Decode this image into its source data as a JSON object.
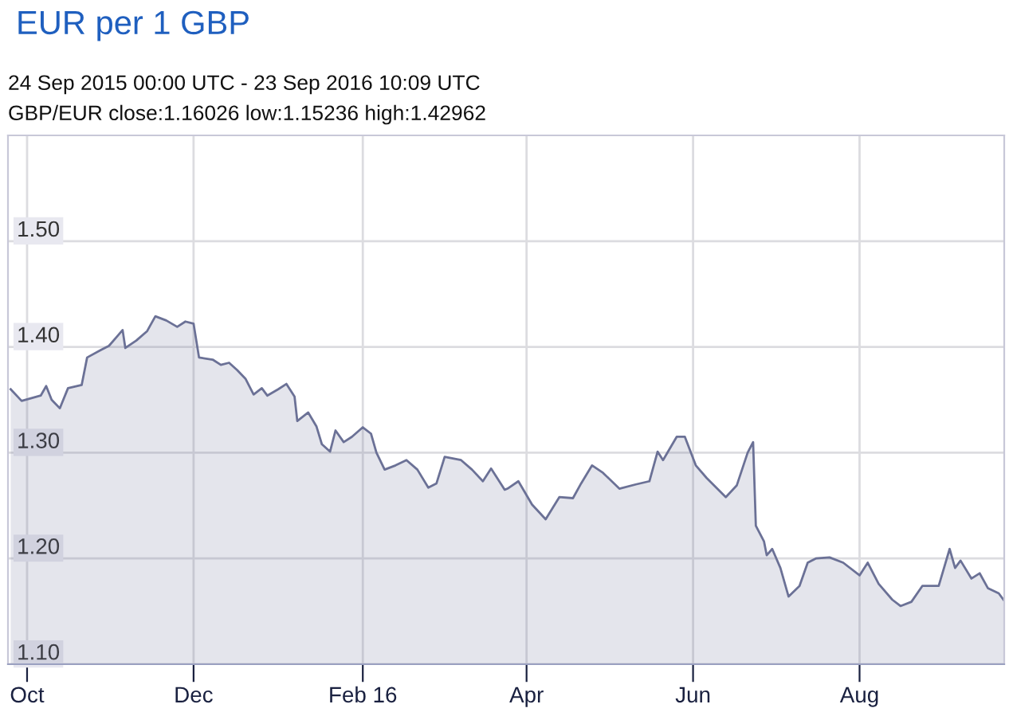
{
  "chart_data": {
    "type": "area",
    "title": "EUR per 1 GBP",
    "subtitle": "24 Sep 2015 00:00 UTC - 23 Sep 2016 10:09 UTC",
    "annotations": [
      "GBP/EUR close:1.16026 low:1.15236 high:1.42962"
    ],
    "x": [
      "2015-09-25",
      "2015-09-29",
      "2015-10-06",
      "2015-10-08",
      "2015-10-10",
      "2015-10-13",
      "2015-10-16",
      "2015-10-21",
      "2015-10-23",
      "2015-10-28",
      "2015-10-31",
      "2015-11-03",
      "2015-11-05",
      "2015-11-06",
      "2015-11-10",
      "2015-11-14",
      "2015-11-17",
      "2015-11-21",
      "2015-11-25",
      "2015-11-28",
      "2015-12-01",
      "2015-12-03",
      "2015-12-08",
      "2015-12-11",
      "2015-12-14",
      "2015-12-17",
      "2015-12-20",
      "2015-12-23",
      "2015-12-26",
      "2015-12-28",
      "2016-01-01",
      "2016-01-04",
      "2016-01-07",
      "2016-01-08",
      "2016-01-12",
      "2016-01-15",
      "2016-01-17",
      "2016-01-20",
      "2016-01-22",
      "2016-01-25",
      "2016-01-28",
      "2016-02-01",
      "2016-02-04",
      "2016-02-06",
      "2016-02-09",
      "2016-02-13",
      "2016-02-17",
      "2016-02-21",
      "2016-02-25",
      "2016-02-28",
      "2016-03-02",
      "2016-03-08",
      "2016-03-12",
      "2016-03-16",
      "2016-03-19",
      "2016-03-24",
      "2016-03-25",
      "2016-03-29",
      "2016-04-03",
      "2016-04-08",
      "2016-04-13",
      "2016-04-18",
      "2016-04-21",
      "2016-04-25",
      "2016-04-29",
      "2016-05-05",
      "2016-05-11",
      "2016-05-16",
      "2016-05-19",
      "2016-05-21",
      "2016-05-26",
      "2016-05-29",
      "2016-06-02",
      "2016-06-06",
      "2016-06-13",
      "2016-06-17",
      "2016-06-21",
      "2016-06-23",
      "2016-06-24",
      "2016-06-27",
      "2016-06-28",
      "2016-06-30",
      "2016-07-03",
      "2016-07-06",
      "2016-07-10",
      "2016-07-13",
      "2016-07-16",
      "2016-07-21",
      "2016-07-26",
      "2016-08-01",
      "2016-08-04",
      "2016-08-08",
      "2016-08-13",
      "2016-08-16",
      "2016-08-20",
      "2016-08-24",
      "2016-08-30",
      "2016-09-03",
      "2016-09-05",
      "2016-09-07",
      "2016-09-11",
      "2016-09-14",
      "2016-09-17",
      "2016-09-21",
      "2016-09-23"
    ],
    "series": [
      {
        "color": "#6b7196",
        "values": [
          1.36,
          1.349,
          1.354,
          1.363,
          1.35,
          1.342,
          1.361,
          1.364,
          1.39,
          1.397,
          1.401,
          1.41,
          1.416,
          1.399,
          1.406,
          1.415,
          1.429,
          1.425,
          1.419,
          1.424,
          1.422,
          1.39,
          1.388,
          1.383,
          1.385,
          1.378,
          1.37,
          1.355,
          1.361,
          1.354,
          1.36,
          1.365,
          1.353,
          1.33,
          1.338,
          1.325,
          1.308,
          1.301,
          1.321,
          1.31,
          1.315,
          1.324,
          1.318,
          1.3,
          1.284,
          1.288,
          1.293,
          1.284,
          1.267,
          1.271,
          1.296,
          1.293,
          1.284,
          1.273,
          1.285,
          1.265,
          1.266,
          1.273,
          1.251,
          1.237,
          1.258,
          1.257,
          1.271,
          1.288,
          1.281,
          1.266,
          1.27,
          1.273,
          1.301,
          1.293,
          1.315,
          1.315,
          1.288,
          1.276,
          1.258,
          1.269,
          1.3,
          1.31,
          1.231,
          1.216,
          1.203,
          1.209,
          1.191,
          1.164,
          1.174,
          1.196,
          1.2,
          1.201,
          1.196,
          1.184,
          1.196,
          1.176,
          1.161,
          1.155,
          1.159,
          1.174,
          1.174,
          1.209,
          1.191,
          1.198,
          1.181,
          1.186,
          1.172,
          1.167,
          1.16
        ]
      }
    ],
    "xlim": [
      "2015-09-24",
      "2016-09-23"
    ],
    "xticks": [
      {
        "value": "2015-10-01",
        "label": "Oct"
      },
      {
        "value": "2015-12-01",
        "label": "Dec"
      },
      {
        "value": "2016-02-01",
        "label": "Feb 16"
      },
      {
        "value": "2016-04-01",
        "label": "Apr"
      },
      {
        "value": "2016-06-01",
        "label": "Jun"
      },
      {
        "value": "2016-08-01",
        "label": "Aug"
      }
    ],
    "ylim": [
      1.1,
      1.6
    ],
    "yticks": [
      {
        "value": 1.1,
        "label": "1.10"
      },
      {
        "value": 1.2,
        "label": "1.20"
      },
      {
        "value": 1.3,
        "label": "1.30"
      },
      {
        "value": 1.4,
        "label": "1.40"
      },
      {
        "value": 1.5,
        "label": "1.50"
      }
    ],
    "grid": true
  }
}
